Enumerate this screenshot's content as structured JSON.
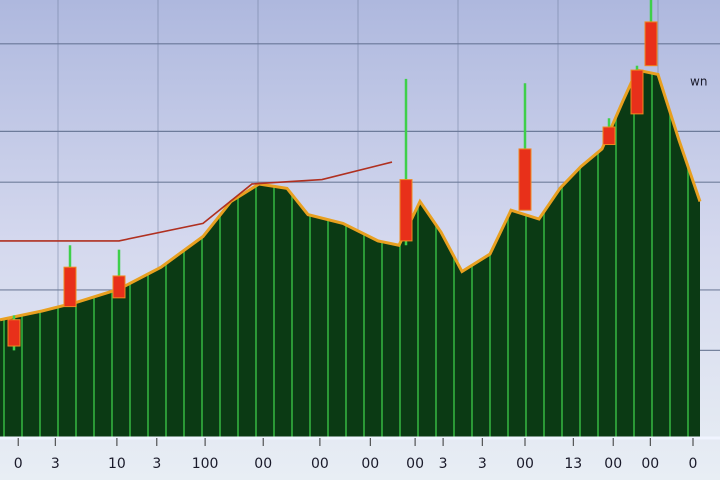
{
  "chart_data": [
    {
      "type": "area",
      "color": "#0b3a14",
      "edge_color": "#e8a020",
      "x": [
        0,
        6,
        11,
        17,
        23,
        29,
        33,
        37,
        41,
        44,
        49,
        54,
        57,
        60,
        63,
        66,
        70,
        73,
        77,
        80,
        83,
        86,
        89,
        91,
        94,
        97,
        100
      ],
      "values": [
        27,
        29,
        31,
        34,
        39,
        46,
        54,
        58,
        57,
        51,
        49,
        45,
        44,
        54,
        47,
        38,
        42,
        52,
        50,
        57,
        62,
        66,
        77,
        84,
        83,
        68,
        54
      ],
      "xlim": [
        0,
        100
      ],
      "ylim": [
        0,
        100
      ],
      "xticks": [
        {
          "value": 2.6,
          "label": "0"
        },
        {
          "value": 7.9,
          "label": "3"
        },
        {
          "value": 16.7,
          "label": "10"
        },
        {
          "value": 22.4,
          "label": "3"
        },
        {
          "value": 29.3,
          "label": "100"
        },
        {
          "value": 37.6,
          "label": "00"
        },
        {
          "value": 45.7,
          "label": "00"
        },
        {
          "value": 52.9,
          "label": "00"
        },
        {
          "value": 59.3,
          "label": "00"
        },
        {
          "value": 63.3,
          "label": "3"
        },
        {
          "value": 68.9,
          "label": "3"
        },
        {
          "value": 75,
          "label": "00"
        },
        {
          "value": 81.9,
          "label": "13"
        },
        {
          "value": 87.6,
          "label": "00"
        },
        {
          "value": 92.9,
          "label": "00"
        },
        {
          "value": 99,
          "label": "0"
        }
      ],
      "yticks": [
        20,
        33.8,
        58.4,
        70,
        90
      ],
      "grid": true,
      "annotations": [
        "wn"
      ]
    },
    {
      "type": "line",
      "color": "#b03020",
      "x": [
        0,
        17,
        29,
        36,
        46,
        56
      ],
      "values": [
        45,
        45,
        49,
        58,
        59,
        63
      ],
      "xlim": [
        0,
        100
      ],
      "ylim": [
        0,
        100
      ]
    },
    {
      "type": "candlestick",
      "color": "#e8301a",
      "x": [
        2,
        10,
        17,
        58,
        75,
        87,
        91,
        93
      ],
      "open": [
        27,
        39,
        37,
        59,
        66,
        71,
        84,
        95
      ],
      "close": [
        21,
        30,
        32,
        45,
        52,
        67,
        74,
        85
      ],
      "high": [
        28,
        44,
        43,
        82,
        81,
        73,
        85,
        100
      ],
      "low": [
        20,
        30,
        32,
        44,
        52,
        67,
        74,
        85
      ],
      "xlim": [
        0,
        100
      ],
      "ylim": [
        0,
        100
      ]
    }
  ]
}
